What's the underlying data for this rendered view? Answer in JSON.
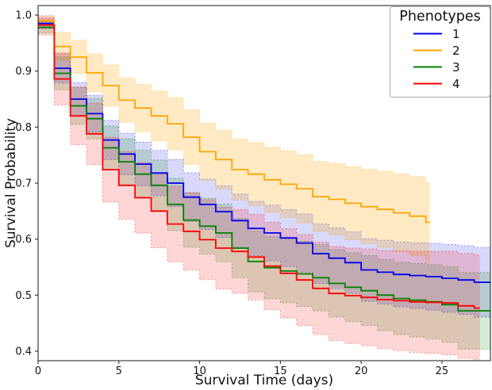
{
  "legend": {
    "title": "Phenotypes",
    "entries": [
      {
        "label": "1",
        "color": "#0000ee"
      },
      {
        "label": "2",
        "color": "#ffa500"
      },
      {
        "label": "3",
        "color": "#008000"
      },
      {
        "label": "4",
        "color": "#ff0000"
      }
    ]
  },
  "chart_data": {
    "type": "line",
    "step": "post",
    "title": "",
    "xlabel": "Survival Time (days)",
    "ylabel": "Survival Probability",
    "xlim": [
      0,
      28
    ],
    "ylim": [
      0.383,
      1.017
    ],
    "x_ticks": [
      0,
      5,
      10,
      15,
      20,
      25
    ],
    "y_ticks": [
      "1.0",
      "0.9",
      "0.8",
      "0.7",
      "0.6",
      "0.5",
      "0.4"
    ],
    "grid": false,
    "legend_position": "upper right",
    "legend_title": "Phenotypes",
    "series": [
      {
        "name": "1",
        "color": "#0000ee",
        "band_opacity": 0.15,
        "x": [
          0,
          1,
          2,
          3,
          4,
          5,
          6,
          7,
          8,
          9,
          10,
          11,
          12,
          13,
          14,
          15,
          16,
          17,
          18,
          19,
          20,
          21,
          22,
          23,
          24,
          25,
          26,
          27
        ],
        "y": [
          0.985,
          0.905,
          0.85,
          0.824,
          0.777,
          0.752,
          0.734,
          0.718,
          0.7,
          0.675,
          0.662,
          0.649,
          0.633,
          0.619,
          0.611,
          0.602,
          0.593,
          0.574,
          0.566,
          0.558,
          0.545,
          0.541,
          0.537,
          0.535,
          0.533,
          0.53,
          0.527,
          0.523
        ],
        "end_x": 28,
        "ci": {
          "a": 0.018,
          "b": 0.0085
        }
      },
      {
        "name": "2",
        "color": "#ffa500",
        "band_opacity": 0.23,
        "x": [
          0,
          1,
          2,
          3,
          4,
          5,
          6,
          7,
          8,
          9,
          10,
          11,
          12,
          13,
          14,
          15,
          16,
          17,
          18,
          19,
          20,
          21,
          22,
          23,
          24
        ],
        "y": [
          0.99,
          0.944,
          0.925,
          0.897,
          0.874,
          0.848,
          0.834,
          0.82,
          0.806,
          0.782,
          0.756,
          0.742,
          0.724,
          0.716,
          0.706,
          0.698,
          0.69,
          0.676,
          0.671,
          0.664,
          0.658,
          0.653,
          0.647,
          0.641,
          0.63
        ],
        "end_x": 24.25,
        "ci": {
          "a": 0.013,
          "b": 0.012
        }
      },
      {
        "name": "3",
        "color": "#008000",
        "band_opacity": 0.16,
        "x": [
          0,
          1,
          2,
          3,
          4,
          5,
          6,
          7,
          8,
          9,
          10,
          11,
          12,
          13,
          14,
          15,
          16,
          17,
          18,
          19,
          20,
          21,
          22,
          23,
          24,
          25,
          26
        ],
        "y": [
          0.978,
          0.896,
          0.838,
          0.815,
          0.763,
          0.738,
          0.716,
          0.696,
          0.662,
          0.634,
          0.623,
          0.611,
          0.584,
          0.56,
          0.549,
          0.543,
          0.538,
          0.531,
          0.521,
          0.514,
          0.508,
          0.5,
          0.494,
          0.491,
          0.488,
          0.483,
          0.472
        ],
        "end_x": 28,
        "ci": {
          "a": 0.02,
          "b": 0.0095
        }
      },
      {
        "name": "4",
        "color": "#ff0000",
        "band_opacity": 0.16,
        "x": [
          0,
          1,
          2,
          3,
          4,
          5,
          6,
          7,
          8,
          9,
          10,
          11,
          12,
          13,
          14,
          15,
          16,
          17,
          18,
          19,
          20,
          21,
          22,
          23,
          24,
          25,
          26,
          27
        ],
        "y": [
          0.982,
          0.886,
          0.82,
          0.788,
          0.724,
          0.696,
          0.674,
          0.65,
          0.627,
          0.614,
          0.599,
          0.584,
          0.578,
          0.568,
          0.552,
          0.539,
          0.527,
          0.512,
          0.503,
          0.499,
          0.496,
          0.492,
          0.49,
          0.488,
          0.487,
          0.486,
          0.481,
          0.477
        ],
        "end_x": 27.35,
        "ci": {
          "a": 0.035,
          "b": 0.0115
        }
      }
    ]
  }
}
